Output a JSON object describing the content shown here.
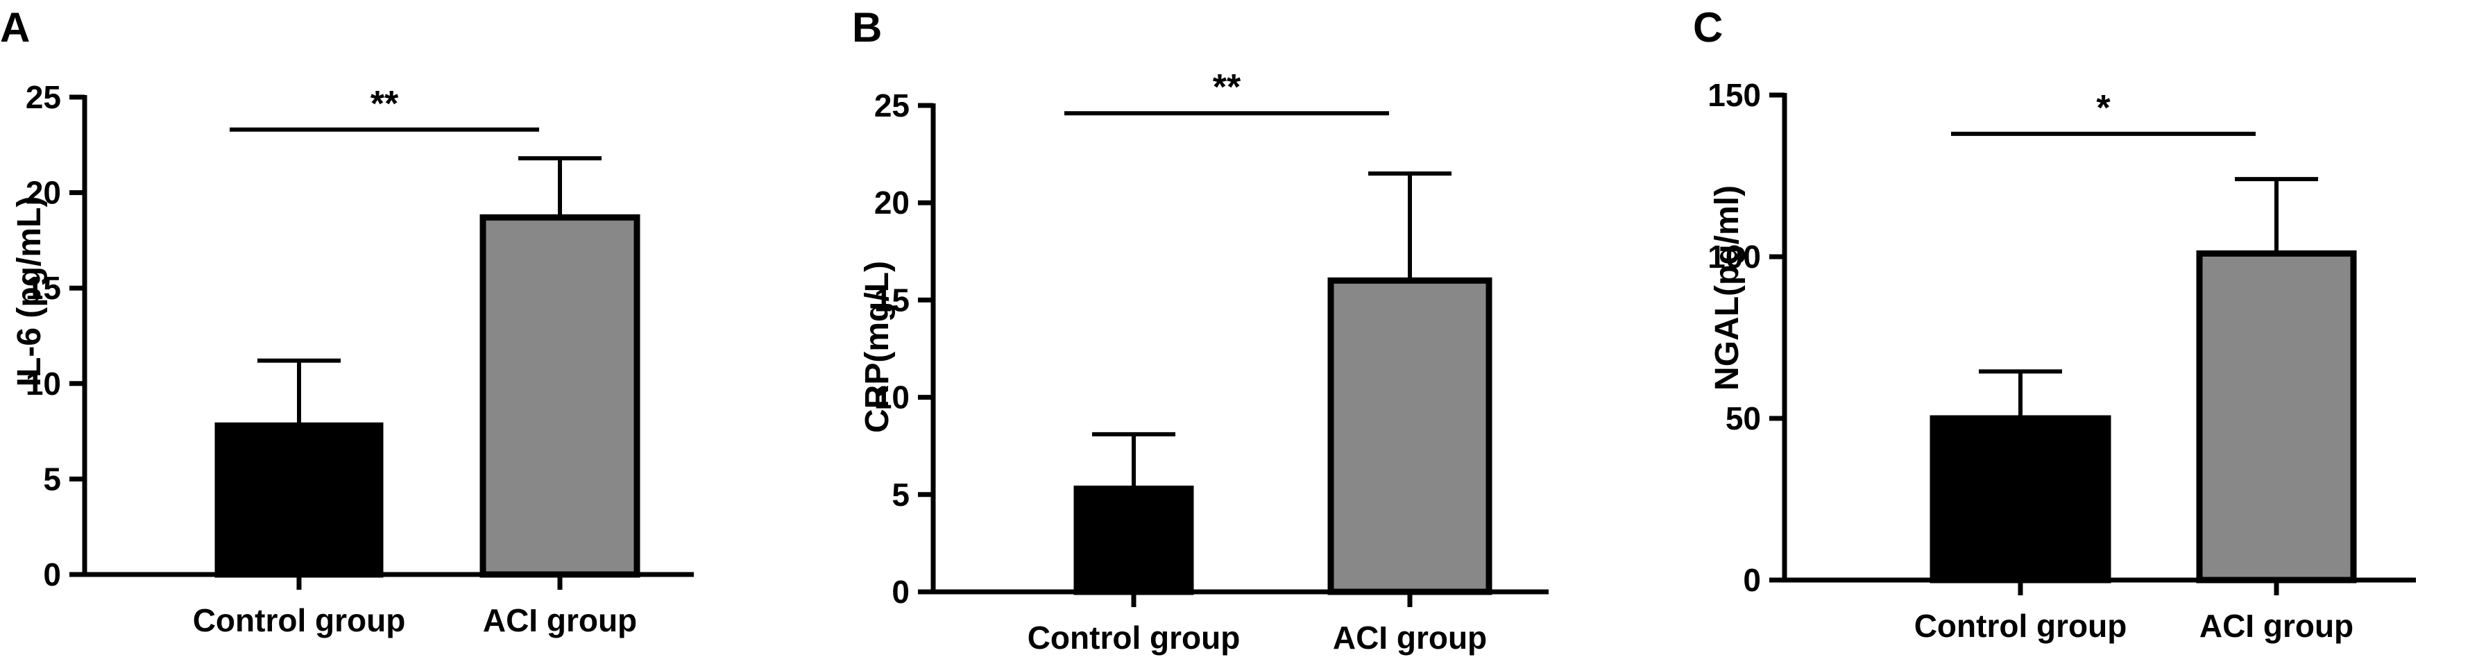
{
  "chart_data": [
    {
      "panel_label": "A",
      "type": "bar",
      "categories": [
        "Control group",
        "ACI group"
      ],
      "values": [
        7.8,
        18.7
      ],
      "errors": [
        3.4,
        3.1
      ],
      "colors": [
        "#000000",
        "#888888"
      ],
      "ylabel": "IL-6 (pg/mL)",
      "ylim": [
        0,
        25
      ],
      "yticks": [
        "0",
        "5",
        "10",
        "15",
        "20",
        "25"
      ],
      "ytick_values": [
        0,
        5,
        10,
        15,
        20,
        25
      ],
      "significance": "**",
      "sig_level": 23.3,
      "grid": false
    },
    {
      "panel_label": "B",
      "type": "bar",
      "categories": [
        "Control group",
        "ACI group"
      ],
      "values": [
        5.3,
        16.0
      ],
      "errors": [
        2.8,
        5.5
      ],
      "colors": [
        "#000000",
        "#888888"
      ],
      "ylabel": "CRP(mg/L)",
      "ylim": [
        0,
        25
      ],
      "yticks": [
        "0",
        "5",
        "10",
        "15",
        "20",
        "25"
      ],
      "ytick_values": [
        0,
        5,
        10,
        15,
        20,
        25
      ],
      "significance": "**",
      "sig_level": 24.6,
      "grid": false
    },
    {
      "panel_label": "C",
      "type": "bar",
      "categories": [
        "Control group",
        "ACI group"
      ],
      "values": [
        50,
        101
      ],
      "errors": [
        14.5,
        23
      ],
      "colors": [
        "#000000",
        "#888888"
      ],
      "ylabel": "NGAL(pg/ml)",
      "ylim": [
        0,
        150
      ],
      "yticks": [
        "0",
        "50",
        "100",
        "150"
      ],
      "ytick_values": [
        0,
        50,
        100,
        150
      ],
      "significance": "*",
      "sig_level": 138,
      "grid": false
    }
  ]
}
